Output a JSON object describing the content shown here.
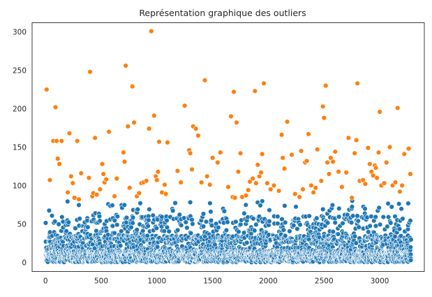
{
  "chart_data": {
    "type": "scatter",
    "title": "Représentation graphique des outliers",
    "xlabel": "",
    "ylabel": "",
    "xlim": [
      -120,
      3400
    ],
    "ylim": [
      -12,
      312
    ],
    "x_ticks": [
      0,
      500,
      1000,
      1500,
      2000,
      2500,
      3000
    ],
    "y_ticks": [
      0,
      50,
      100,
      150,
      200,
      250,
      300
    ],
    "grid": false,
    "legend": "none",
    "point_count_approx": 3280,
    "series": [
      {
        "color": "#1f77b4",
        "description_range": "inliers, y from 0 to ~80, x from 0 to ~3280",
        "x_range": [
          0,
          3280
        ],
        "y_range": [
          0,
          80
        ]
      },
      {
        "color": "#ff7f0e",
        "points": [
          [
            10,
            225
          ],
          [
            40,
            107
          ],
          [
            70,
            158
          ],
          [
            90,
            202
          ],
          [
            100,
            158
          ],
          [
            110,
            135
          ],
          [
            125,
            128
          ],
          [
            145,
            158
          ],
          [
            200,
            91
          ],
          [
            215,
            168
          ],
          [
            230,
            112
          ],
          [
            245,
            103
          ],
          [
            260,
            84
          ],
          [
            285,
            158
          ],
          [
            300,
            82
          ],
          [
            320,
            116
          ],
          [
            390,
            110
          ],
          [
            400,
            248
          ],
          [
            420,
            86
          ],
          [
            430,
            90
          ],
          [
            445,
            162
          ],
          [
            460,
            88
          ],
          [
            490,
            95
          ],
          [
            510,
            128
          ],
          [
            520,
            115
          ],
          [
            530,
            104
          ],
          [
            545,
            108
          ],
          [
            570,
            170
          ],
          [
            620,
            86
          ],
          [
            640,
            109
          ],
          [
            700,
            143
          ],
          [
            710,
            131
          ],
          [
            720,
            256
          ],
          [
            740,
            177
          ],
          [
            755,
            97
          ],
          [
            780,
            229
          ],
          [
            795,
            182
          ],
          [
            820,
            86
          ],
          [
            840,
            90
          ],
          [
            860,
            103
          ],
          [
            880,
            104
          ],
          [
            905,
            106
          ],
          [
            930,
            174
          ],
          [
            950,
            301
          ],
          [
            975,
            191
          ],
          [
            990,
            112
          ],
          [
            1000,
            107
          ],
          [
            1010,
            118
          ],
          [
            1020,
            157
          ],
          [
            1045,
            91
          ],
          [
            1070,
            101
          ],
          [
            1080,
            89
          ],
          [
            1095,
            156
          ],
          [
            1185,
            119
          ],
          [
            1215,
            104
          ],
          [
            1250,
            204
          ],
          [
            1290,
            146
          ],
          [
            1300,
            142
          ],
          [
            1315,
            121
          ],
          [
            1325,
            177
          ],
          [
            1350,
            174
          ],
          [
            1370,
            165
          ],
          [
            1400,
            104
          ],
          [
            1430,
            237
          ],
          [
            1450,
            112
          ],
          [
            1475,
            101
          ],
          [
            1500,
            136
          ],
          [
            1545,
            130
          ],
          [
            1570,
            143
          ],
          [
            1640,
            98
          ],
          [
            1665,
            190
          ],
          [
            1680,
            85
          ],
          [
            1690,
            222
          ],
          [
            1700,
            84
          ],
          [
            1715,
            182
          ],
          [
            1730,
            118
          ],
          [
            1750,
            142
          ],
          [
            1765,
            85
          ],
          [
            1800,
            87
          ],
          [
            1820,
            94
          ],
          [
            1835,
            105
          ],
          [
            1860,
            109
          ],
          [
            1880,
            223
          ],
          [
            1890,
            103
          ],
          [
            1905,
            127
          ],
          [
            1920,
            112
          ],
          [
            1935,
            117
          ],
          [
            1945,
            141
          ],
          [
            1960,
            233
          ],
          [
            1990,
            103
          ],
          [
            2020,
            95
          ],
          [
            2050,
            100
          ],
          [
            2095,
            93
          ],
          [
            2120,
            166
          ],
          [
            2130,
            136
          ],
          [
            2145,
            122
          ],
          [
            2170,
            183
          ],
          [
            2210,
            140
          ],
          [
            2240,
            89
          ],
          [
            2280,
            85
          ],
          [
            2295,
            145
          ],
          [
            2310,
            95
          ],
          [
            2330,
            130
          ],
          [
            2345,
            132
          ],
          [
            2360,
            167
          ],
          [
            2385,
            100
          ],
          [
            2405,
            91
          ],
          [
            2425,
            97
          ],
          [
            2440,
            147
          ],
          [
            2475,
            106
          ],
          [
            2490,
            203
          ],
          [
            2500,
            188
          ],
          [
            2515,
            230
          ],
          [
            2530,
            130
          ],
          [
            2545,
            115
          ],
          [
            2560,
            136
          ],
          [
            2580,
            131
          ],
          [
            2600,
            144
          ],
          [
            2630,
            118
          ],
          [
            2660,
            98
          ],
          [
            2700,
            117
          ],
          [
            2720,
            162
          ],
          [
            2750,
            84
          ],
          [
            2775,
            142
          ],
          [
            2790,
            159
          ],
          [
            2800,
            233
          ],
          [
            2820,
            106
          ],
          [
            2850,
            107
          ],
          [
            2870,
            102
          ],
          [
            2895,
            149
          ],
          [
            2910,
            128
          ],
          [
            2925,
            118
          ],
          [
            2940,
            113
          ],
          [
            2955,
            126
          ],
          [
            2965,
            123
          ],
          [
            2975,
            110
          ],
          [
            2990,
            143
          ],
          [
            3000,
            196
          ],
          [
            3015,
            100
          ],
          [
            3040,
            103
          ],
          [
            3060,
            130
          ],
          [
            3090,
            150
          ],
          [
            3115,
            100
          ],
          [
            3140,
            104
          ],
          [
            3160,
            201
          ],
          [
            3180,
            92
          ],
          [
            3200,
            100
          ],
          [
            3220,
            141
          ],
          [
            3260,
            148
          ],
          [
            3275,
            115
          ]
        ]
      }
    ]
  }
}
